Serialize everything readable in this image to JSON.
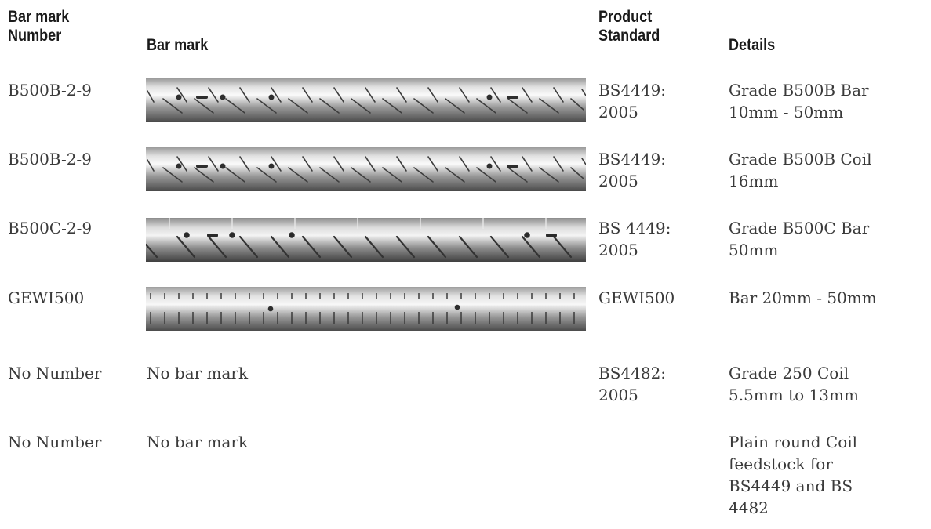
{
  "headers": {
    "number": "Bar mark\nNumber",
    "mark": "Bar mark",
    "standard": "Product\nStandard",
    "details": "Details"
  },
  "rows": [
    {
      "number": "B500B-2-9",
      "mark": "",
      "mark_icon": "rebar-b500b-bar-icon",
      "standard": "BS4449:\n2005",
      "details": "Grade B500B Bar\n10mm - 50mm"
    },
    {
      "number": "B500B-2-9",
      "mark": "",
      "mark_icon": "rebar-b500b-coil-icon",
      "standard": "BS4449:\n2005",
      "details": "Grade B500B Coil\n16mm"
    },
    {
      "number": "B500C-2-9",
      "mark": "",
      "mark_icon": "rebar-b500c-bar-icon",
      "standard": "BS 4449:\n2005",
      "details": "Grade B500C Bar\n50mm"
    },
    {
      "number": "GEWI500",
      "mark": "",
      "mark_icon": "rebar-gewi500-icon",
      "standard": "GEWI500",
      "details": "Bar 20mm - 50mm"
    },
    {
      "number": "No Number",
      "mark": "No bar mark",
      "mark_icon": "",
      "standard": "BS4482:\n2005",
      "details": "Grade 250 Coil\n5.5mm to 13mm"
    },
    {
      "number": "No Number",
      "mark": "No bar mark",
      "mark_icon": "",
      "standard": "",
      "details": "Plain round Coil\nfeedstock for\nBS4449 and BS\n4482"
    }
  ]
}
